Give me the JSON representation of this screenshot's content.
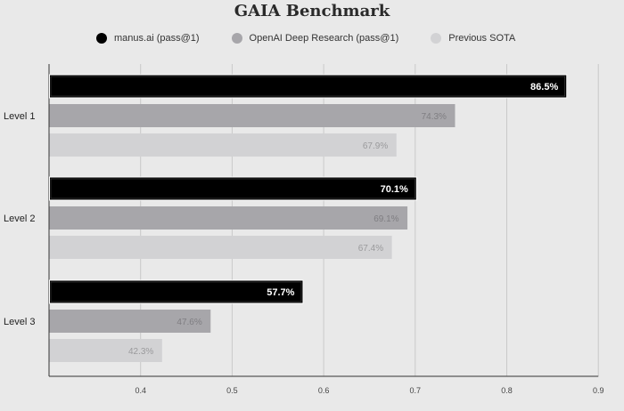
{
  "chart_data": {
    "type": "bar",
    "orientation": "horizontal",
    "title": "GAIA Benchmark",
    "categories": [
      "Level 1",
      "Level 2",
      "Level 3"
    ],
    "series": [
      {
        "name": "manus.ai (pass@1)",
        "color": "#000000",
        "values": [
          86.5,
          70.1,
          57.7
        ],
        "labels": [
          "86.5%",
          "70.1%",
          "57.7%"
        ]
      },
      {
        "name": "OpenAI Deep Research (pass@1)",
        "color": "#a7a6aa",
        "values": [
          74.3,
          69.1,
          47.6
        ],
        "labels": [
          "74.3%",
          "69.1%",
          "47.6%"
        ]
      },
      {
        "name": "Previous SOTA",
        "color": "#d2d2d4",
        "values": [
          67.9,
          67.4,
          42.3
        ],
        "labels": [
          "67.9%",
          "67.4%",
          "42.3%"
        ]
      }
    ],
    "xticks": [
      "0.4",
      "0.5",
      "0.6",
      "0.7",
      "0.8",
      "0.9"
    ],
    "xlim": [
      0.3,
      0.9
    ],
    "grid": true,
    "legend_position": "top"
  },
  "colors": {
    "background": "#e9e9e9",
    "gridline": "#c9c9c9",
    "axis": "#333333"
  }
}
